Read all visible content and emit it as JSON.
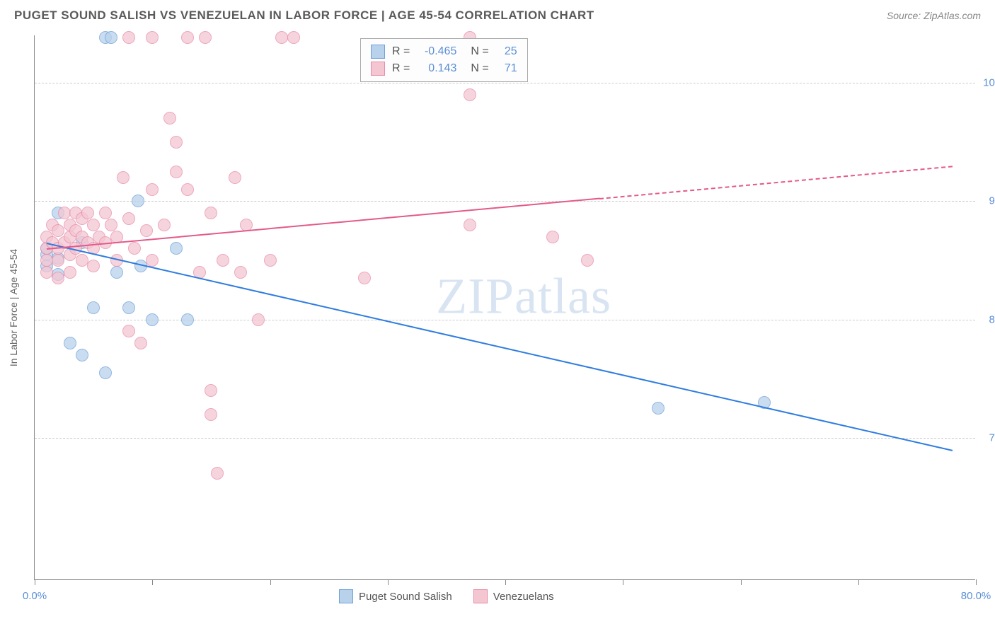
{
  "title": "PUGET SOUND SALISH VS VENEZUELAN IN LABOR FORCE | AGE 45-54 CORRELATION CHART",
  "source_label": "Source: ZipAtlas.com",
  "watermark": "ZIPatlas",
  "chart": {
    "type": "scatter",
    "ylabel": "In Labor Force | Age 45-54",
    "xlim": [
      0,
      80
    ],
    "ylim": [
      58,
      104
    ],
    "xtick_positions": [
      0,
      10,
      20,
      30,
      40,
      50,
      60,
      70,
      80
    ],
    "xtick_labels": {
      "0": "0.0%",
      "80": "80.0%"
    },
    "ytick_positions": [
      70,
      80,
      90,
      100
    ],
    "ytick_labels": {
      "70": "70.0%",
      "80": "80.0%",
      "90": "90.0%",
      "100": "100.0%"
    },
    "background_color": "#ffffff",
    "grid_color": "#cccccc",
    "axis_color": "#888888",
    "label_color": "#5b8fd6",
    "series": [
      {
        "name": "Puget Sound Salish",
        "fill": "#b9d2ec",
        "stroke": "#6ea0d8",
        "opacity": 0.75,
        "r_value": "-0.465",
        "n_value": "25",
        "trend": {
          "x1": 1,
          "y1": 86.5,
          "x2": 78,
          "y2": 69,
          "dash_after_x": null,
          "color": "#2f7de0"
        },
        "points": [
          [
            1,
            84.5
          ],
          [
            1,
            85.5
          ],
          [
            1,
            86
          ],
          [
            2,
            89
          ],
          [
            2,
            83.8
          ],
          [
            2,
            85.2
          ],
          [
            3,
            78
          ],
          [
            4,
            86.5
          ],
          [
            4,
            77
          ],
          [
            5,
            81
          ],
          [
            6,
            103.8
          ],
          [
            6.5,
            103.8
          ],
          [
            6,
            75.5
          ],
          [
            7,
            84
          ],
          [
            8,
            81
          ],
          [
            8.8,
            90
          ],
          [
            9,
            84.5
          ],
          [
            10,
            80
          ],
          [
            12,
            86
          ],
          [
            13,
            80
          ],
          [
            53,
            72.5
          ],
          [
            62,
            73
          ]
        ]
      },
      {
        "name": "Venezuelans",
        "fill": "#f4c6d2",
        "stroke": "#e88ba8",
        "opacity": 0.75,
        "r_value": "0.143",
        "n_value": "71",
        "trend": {
          "x1": 1,
          "y1": 86,
          "x2": 78,
          "y2": 93,
          "dash_after_x": 48,
          "color": "#e35a8a"
        },
        "points": [
          [
            1,
            86
          ],
          [
            1,
            87
          ],
          [
            1,
            85
          ],
          [
            1,
            84
          ],
          [
            1.5,
            88
          ],
          [
            1.5,
            86.5
          ],
          [
            2,
            87.5
          ],
          [
            2,
            86
          ],
          [
            2,
            85
          ],
          [
            2,
            83.5
          ],
          [
            2.5,
            89
          ],
          [
            2.5,
            86.5
          ],
          [
            3,
            88
          ],
          [
            3,
            87
          ],
          [
            3,
            85.5
          ],
          [
            3,
            84
          ],
          [
            3.5,
            89
          ],
          [
            3.5,
            87.5
          ],
          [
            3.5,
            86
          ],
          [
            4,
            88.5
          ],
          [
            4,
            87
          ],
          [
            4,
            85
          ],
          [
            4.5,
            89
          ],
          [
            4.5,
            86.5
          ],
          [
            5,
            88
          ],
          [
            5,
            86
          ],
          [
            5,
            84.5
          ],
          [
            5.5,
            87
          ],
          [
            6,
            89
          ],
          [
            6,
            86.5
          ],
          [
            6.5,
            88
          ],
          [
            7,
            87
          ],
          [
            7,
            85
          ],
          [
            7.5,
            92
          ],
          [
            8,
            103.8
          ],
          [
            8,
            88.5
          ],
          [
            8,
            79
          ],
          [
            8.5,
            86
          ],
          [
            9,
            78
          ],
          [
            9.5,
            87.5
          ],
          [
            10,
            103.8
          ],
          [
            10,
            91
          ],
          [
            10,
            85
          ],
          [
            11,
            88
          ],
          [
            11.5,
            97
          ],
          [
            12,
            95
          ],
          [
            12,
            92.5
          ],
          [
            13,
            103.8
          ],
          [
            13,
            91
          ],
          [
            14,
            84
          ],
          [
            14.5,
            103.8
          ],
          [
            15,
            89
          ],
          [
            15,
            74
          ],
          [
            15,
            72
          ],
          [
            15.5,
            67
          ],
          [
            16,
            85
          ],
          [
            17,
            92
          ],
          [
            17.5,
            84
          ],
          [
            18,
            88
          ],
          [
            19,
            80
          ],
          [
            20,
            85
          ],
          [
            21,
            103.8
          ],
          [
            22,
            103.8
          ],
          [
            28,
            83.5
          ],
          [
            37,
            103.8
          ],
          [
            37,
            99
          ],
          [
            37,
            88
          ],
          [
            44,
            87
          ],
          [
            47,
            85
          ]
        ]
      }
    ],
    "legend": [
      {
        "label": "Puget Sound Salish",
        "fill": "#b9d2ec",
        "stroke": "#6ea0d8"
      },
      {
        "label": "Venezuelans",
        "fill": "#f4c6d2",
        "stroke": "#e88ba8"
      }
    ]
  }
}
